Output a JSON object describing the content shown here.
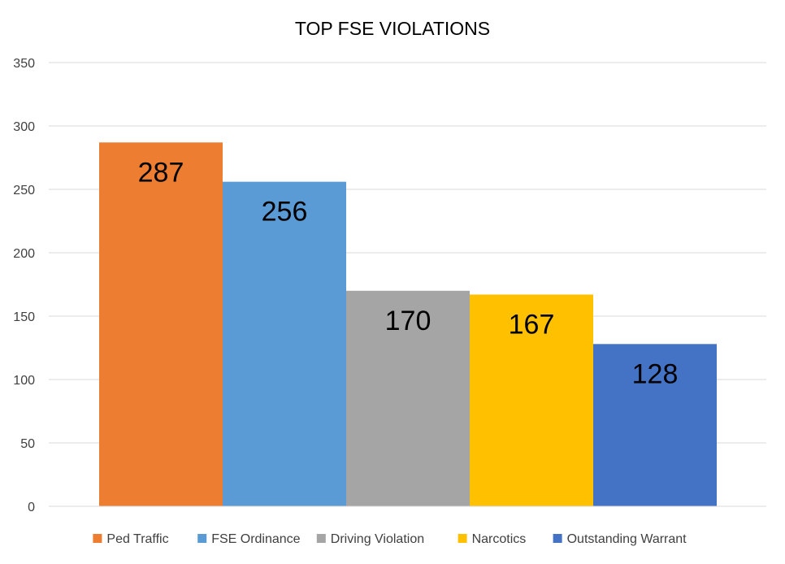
{
  "chart_data": {
    "type": "bar",
    "title": "TOP FSE VIOLATIONS",
    "xlabel": "",
    "ylabel": "",
    "categories": [
      "Ped Traffic",
      "FSE Ordinance",
      "Driving Violation",
      "Narcotics",
      "Outstanding Warrant"
    ],
    "values": [
      287,
      256,
      170,
      167,
      128
    ],
    "value_labels": [
      "287",
      "256",
      "170",
      "167",
      "128"
    ],
    "colors": [
      "#ED7D31",
      "#5B9BD5",
      "#A5A5A5",
      "#FFC000",
      "#4472C4"
    ],
    "ylim": [
      0,
      350
    ],
    "yticks": [
      0,
      50,
      100,
      150,
      200,
      250,
      300,
      350
    ],
    "ytick_labels": [
      "0",
      "50",
      "100",
      "150",
      "200",
      "250",
      "300",
      "350"
    ],
    "grid": true,
    "legend": {
      "position": "bottom",
      "entries": [
        "Ped Traffic",
        "FSE Ordinance",
        "Driving Violation",
        "Narcotics",
        "Outstanding Warrant"
      ]
    }
  }
}
